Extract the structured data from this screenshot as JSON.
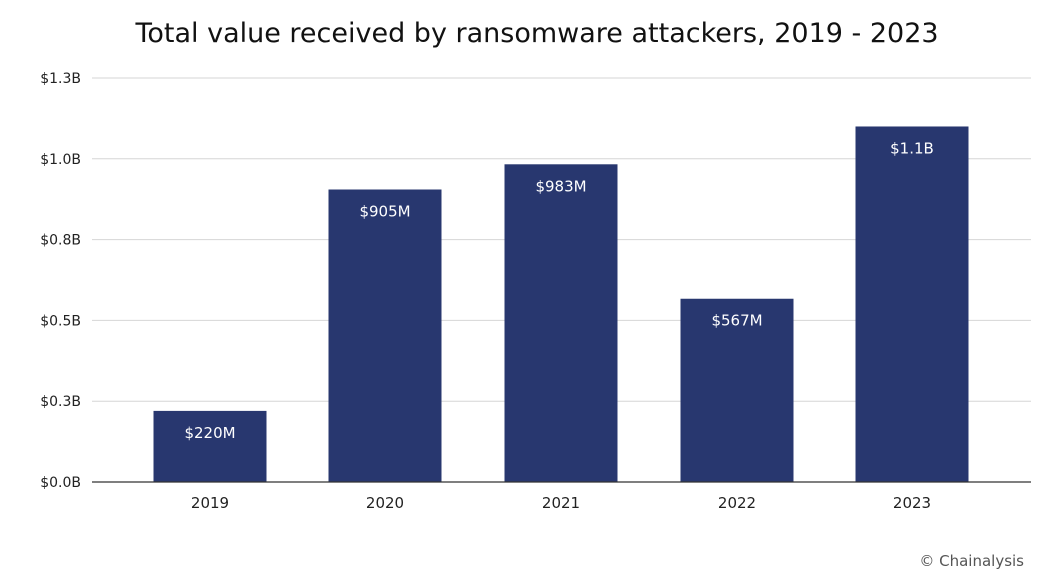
{
  "chart_data": {
    "type": "bar",
    "title": "Total value received by ransomware attackers, 2019 - 2023",
    "categories": [
      "2019",
      "2020",
      "2021",
      "2022",
      "2023"
    ],
    "values": [
      220,
      905,
      983,
      567,
      1100
    ],
    "value_unit": "million USD",
    "data_labels": [
      "$220M",
      "$905M",
      "$983M",
      "$567M",
      "$1.1B"
    ],
    "yticks": [
      0,
      250,
      500,
      750,
      1000,
      1250
    ],
    "ytick_labels": [
      "$0.0B",
      "$0.3B",
      "$0.5B",
      "$0.8B",
      "$1.0B",
      "$1.3B"
    ],
    "ylim": [
      0,
      1250
    ],
    "xlabel": "",
    "ylabel": "",
    "grid": true,
    "colors": {
      "bar": "#28376f"
    }
  },
  "credit": "© Chainalysis"
}
